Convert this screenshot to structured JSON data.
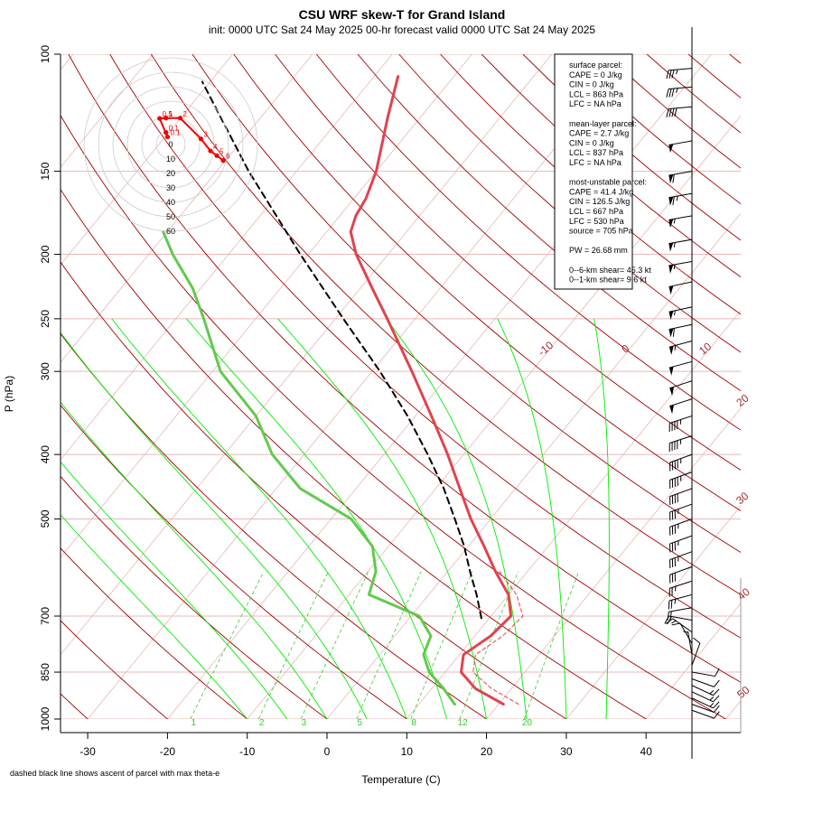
{
  "chart_data": {
    "type": "skew-t",
    "title": "CSU WRF skew-T for Grand Island",
    "subtitle": "init: 0000 UTC Sat 24 May 2025    00-hr forecast valid 0000 UTC Sat 24 May 2025",
    "xlabel": "Temperature (C)",
    "ylabel": "P (hPa)",
    "footnote": "dashed black line shows ascent of parcel with max theta-e",
    "x_ticks": [
      -30,
      -20,
      -10,
      0,
      10,
      20,
      30,
      40
    ],
    "x_tick_labels": [
      "-30",
      "-20",
      "-10",
      "0",
      "10",
      "20",
      "30",
      "40"
    ],
    "y_ticks": [
      100,
      150,
      200,
      250,
      300,
      400,
      500,
      700,
      850,
      1000
    ],
    "y_tick_labels": [
      "100",
      "150",
      "200",
      "250",
      "300",
      "400",
      "500",
      "700",
      "850",
      "1000"
    ],
    "xlim": [
      -33,
      52
    ],
    "ylim": [
      1000,
      100
    ],
    "isotherm_labels": [
      {
        "t": -10,
        "text": "-10"
      },
      {
        "t": 0,
        "text": "0"
      },
      {
        "t": 10,
        "text": "10"
      },
      {
        "t": 20,
        "text": "20"
      },
      {
        "t": 30,
        "text": "30"
      },
      {
        "t": 40,
        "text": "40"
      },
      {
        "t": 50,
        "text": "50"
      }
    ],
    "mixing_ratio_labels": [
      {
        "w": 1,
        "text": "1"
      },
      {
        "w": 2,
        "text": "2"
      },
      {
        "w": 3,
        "text": "3"
      },
      {
        "w": 5,
        "text": "5"
      },
      {
        "w": 8,
        "text": "8"
      },
      {
        "w": 12,
        "text": "12"
      },
      {
        "w": 20,
        "text": "20"
      }
    ],
    "temperature": {
      "name": "Temperature",
      "points": [
        {
          "p": 950,
          "t": 20.6
        },
        {
          "p": 900,
          "t": 15.5
        },
        {
          "p": 850,
          "t": 12.0
        },
        {
          "p": 800,
          "t": 10.5
        },
        {
          "p": 750,
          "t": 12.0
        },
        {
          "p": 700,
          "t": 12.5
        },
        {
          "p": 650,
          "t": 10.0
        },
        {
          "p": 600,
          "t": 6.0
        },
        {
          "p": 550,
          "t": 2.0
        },
        {
          "p": 500,
          "t": -2.5
        },
        {
          "p": 450,
          "t": -7.0
        },
        {
          "p": 400,
          "t": -12.0
        },
        {
          "p": 350,
          "t": -18.0
        },
        {
          "p": 300,
          "t": -25.0
        },
        {
          "p": 250,
          "t": -33.5
        },
        {
          "p": 225,
          "t": -38.5
        },
        {
          "p": 200,
          "t": -44.0
        },
        {
          "p": 185,
          "t": -47.0
        },
        {
          "p": 175,
          "t": -48.0
        },
        {
          "p": 165,
          "t": -48.5
        },
        {
          "p": 150,
          "t": -50.0
        },
        {
          "p": 125,
          "t": -54.0
        },
        {
          "p": 108,
          "t": -57.0
        }
      ]
    },
    "dewpoint": {
      "name": "Dewpoint",
      "points": [
        {
          "p": 950,
          "t": 14.5
        },
        {
          "p": 900,
          "t": 11.5
        },
        {
          "p": 850,
          "t": 8.0
        },
        {
          "p": 800,
          "t": 5.5
        },
        {
          "p": 750,
          "t": 4.5
        },
        {
          "p": 700,
          "t": 1.0
        },
        {
          "p": 650,
          "t": -7.5
        },
        {
          "p": 600,
          "t": -9.0
        },
        {
          "p": 550,
          "t": -12.0
        },
        {
          "p": 500,
          "t": -17.5
        },
        {
          "p": 450,
          "t": -27.0
        },
        {
          "p": 400,
          "t": -34.0
        },
        {
          "p": 350,
          "t": -40.0
        },
        {
          "p": 300,
          "t": -49.0
        },
        {
          "p": 250,
          "t": -56.5
        },
        {
          "p": 225,
          "t": -61.0
        },
        {
          "p": 200,
          "t": -67.0
        },
        {
          "p": 185,
          "t": -70.5
        }
      ]
    },
    "virtual_temperature": {
      "name": "Virtual temperature",
      "points": [
        {
          "p": 950,
          "t": 22.5
        },
        {
          "p": 900,
          "t": 17.5
        },
        {
          "p": 850,
          "t": 13.5
        },
        {
          "p": 800,
          "t": 12.0
        },
        {
          "p": 750,
          "t": 13.5
        },
        {
          "p": 700,
          "t": 14.0
        },
        {
          "p": 650,
          "t": 11.0
        },
        {
          "p": 600,
          "t": 6.5
        }
      ]
    },
    "parcel_max_theta_e": {
      "name": "Parcel with max theta-e",
      "points": [
        {
          "p": 705,
          "t": 9.0
        },
        {
          "p": 650,
          "t": 6.0
        },
        {
          "p": 600,
          "t": 2.8
        },
        {
          "p": 550,
          "t": -0.5
        },
        {
          "p": 500,
          "t": -4.5
        },
        {
          "p": 450,
          "t": -9.0
        },
        {
          "p": 400,
          "t": -14.5
        },
        {
          "p": 350,
          "t": -21.0
        },
        {
          "p": 300,
          "t": -29.0
        },
        {
          "p": 250,
          "t": -39.0
        },
        {
          "p": 200,
          "t": -51.0
        },
        {
          "p": 150,
          "t": -66.0
        },
        {
          "p": 110,
          "t": -81.0
        }
      ]
    },
    "hodograph": {
      "ring_labels": [
        "0",
        "10",
        "20",
        "30",
        "40",
        "50",
        "60"
      ],
      "ring_speeds_kt": [
        0,
        10,
        20,
        30,
        40,
        50,
        60
      ],
      "points": [
        {
          "u": 16.5,
          "v": -5.0,
          "label": "6"
        },
        {
          "u": 14.5,
          "v": -3.5,
          "label": "5"
        },
        {
          "u": 12.5,
          "v": -2.0,
          "label": "4"
        },
        {
          "u": 9.5,
          "v": 1.8,
          "label": "3"
        },
        {
          "u": 3.0,
          "v": 8.3,
          "label": "2"
        },
        {
          "u": -1.5,
          "v": 8.3,
          "label": "1"
        },
        {
          "u": -3.5,
          "v": 8.2,
          "label": "0.5"
        },
        {
          "u": -1.0,
          "v": 2.4,
          "label": "0.1"
        },
        {
          "u": -1.5,
          "v": 3.8,
          "label": "0.1"
        }
      ]
    },
    "stats": [
      "surface parcel:",
      "CAPE = 0 J/kg",
      "CIN = 0 J/kg",
      "LCL = 863 hPa",
      "LFC = NA hPa",
      "",
      "mean-layer parcel:",
      "CAPE = 2.7 J/kg",
      "CIN = 0 J/kg",
      "LCL = 837 hPa",
      "LFC = NA hPa",
      "",
      "most-unstable parcel:",
      "CAPE = 41.4 J/kg",
      "CIN = 126.5 J/kg",
      "LCL = 667 hPa",
      "LFC = 530 hPa",
      "source = 705 hPa",
      "",
      "PW =  26.68 mm",
      "",
      "0--6-km shear= 45.3 kt",
      "0--1-km shear= 9.6 kt"
    ],
    "wind_barbs": [
      {
        "p": 105,
        "speed_kt": 35,
        "dir_deg": 265
      },
      {
        "p": 112,
        "speed_kt": 35,
        "dir_deg": 265
      },
      {
        "p": 120,
        "speed_kt": 40,
        "dir_deg": 265
      },
      {
        "p": 135,
        "speed_kt": 50,
        "dir_deg": 260
      },
      {
        "p": 150,
        "speed_kt": 60,
        "dir_deg": 260
      },
      {
        "p": 162,
        "speed_kt": 65,
        "dir_deg": 260
      },
      {
        "p": 175,
        "speed_kt": 55,
        "dir_deg": 260
      },
      {
        "p": 190,
        "speed_kt": 55,
        "dir_deg": 260
      },
      {
        "p": 205,
        "speed_kt": 55,
        "dir_deg": 260
      },
      {
        "p": 220,
        "speed_kt": 50,
        "dir_deg": 258
      },
      {
        "p": 240,
        "speed_kt": 55,
        "dir_deg": 258
      },
      {
        "p": 255,
        "speed_kt": 60,
        "dir_deg": 258
      },
      {
        "p": 270,
        "speed_kt": 55,
        "dir_deg": 255
      },
      {
        "p": 290,
        "speed_kt": 50,
        "dir_deg": 255
      },
      {
        "p": 310,
        "speed_kt": 50,
        "dir_deg": 252
      },
      {
        "p": 330,
        "speed_kt": 50,
        "dir_deg": 252
      },
      {
        "p": 350,
        "speed_kt": 45,
        "dir_deg": 252
      },
      {
        "p": 375,
        "speed_kt": 45,
        "dir_deg": 252
      },
      {
        "p": 400,
        "speed_kt": 45,
        "dir_deg": 250
      },
      {
        "p": 425,
        "speed_kt": 45,
        "dir_deg": 250
      },
      {
        "p": 450,
        "speed_kt": 40,
        "dir_deg": 250
      },
      {
        "p": 475,
        "speed_kt": 35,
        "dir_deg": 250
      },
      {
        "p": 500,
        "speed_kt": 35,
        "dir_deg": 250
      },
      {
        "p": 530,
        "speed_kt": 35,
        "dir_deg": 250
      },
      {
        "p": 560,
        "speed_kt": 35,
        "dir_deg": 250
      },
      {
        "p": 590,
        "speed_kt": 30,
        "dir_deg": 250
      },
      {
        "p": 620,
        "speed_kt": 25,
        "dir_deg": 252
      },
      {
        "p": 650,
        "speed_kt": 25,
        "dir_deg": 255
      },
      {
        "p": 680,
        "speed_kt": 20,
        "dir_deg": 260
      },
      {
        "p": 710,
        "speed_kt": 20,
        "dir_deg": 280
      },
      {
        "p": 740,
        "speed_kt": 15,
        "dir_deg": 305
      },
      {
        "p": 770,
        "speed_kt": 10,
        "dir_deg": 330
      },
      {
        "p": 800,
        "speed_kt": 5,
        "dir_deg": 350
      },
      {
        "p": 830,
        "speed_kt": 10,
        "dir_deg": 20
      },
      {
        "p": 850,
        "speed_kt": 10,
        "dir_deg": 100
      },
      {
        "p": 870,
        "speed_kt": 10,
        "dir_deg": 110
      },
      {
        "p": 890,
        "speed_kt": 15,
        "dir_deg": 115
      },
      {
        "p": 910,
        "speed_kt": 15,
        "dir_deg": 115
      },
      {
        "p": 930,
        "speed_kt": 15,
        "dir_deg": 115
      },
      {
        "p": 950,
        "speed_kt": 10,
        "dir_deg": 110
      },
      {
        "p": 970,
        "speed_kt": 10,
        "dir_deg": 110
      }
    ],
    "colors": {
      "temperature": "#e0434f",
      "dewpoint": "#63c94f",
      "parcel": "#000000",
      "isotherm": "#a52a2a",
      "dry_adiabat": "#a00000",
      "moist_adiabat": "#00ee00",
      "mixing_ratio": "#33cc33",
      "hodograph": "#ee0000",
      "isobar": "#e8b8b8"
    }
  }
}
